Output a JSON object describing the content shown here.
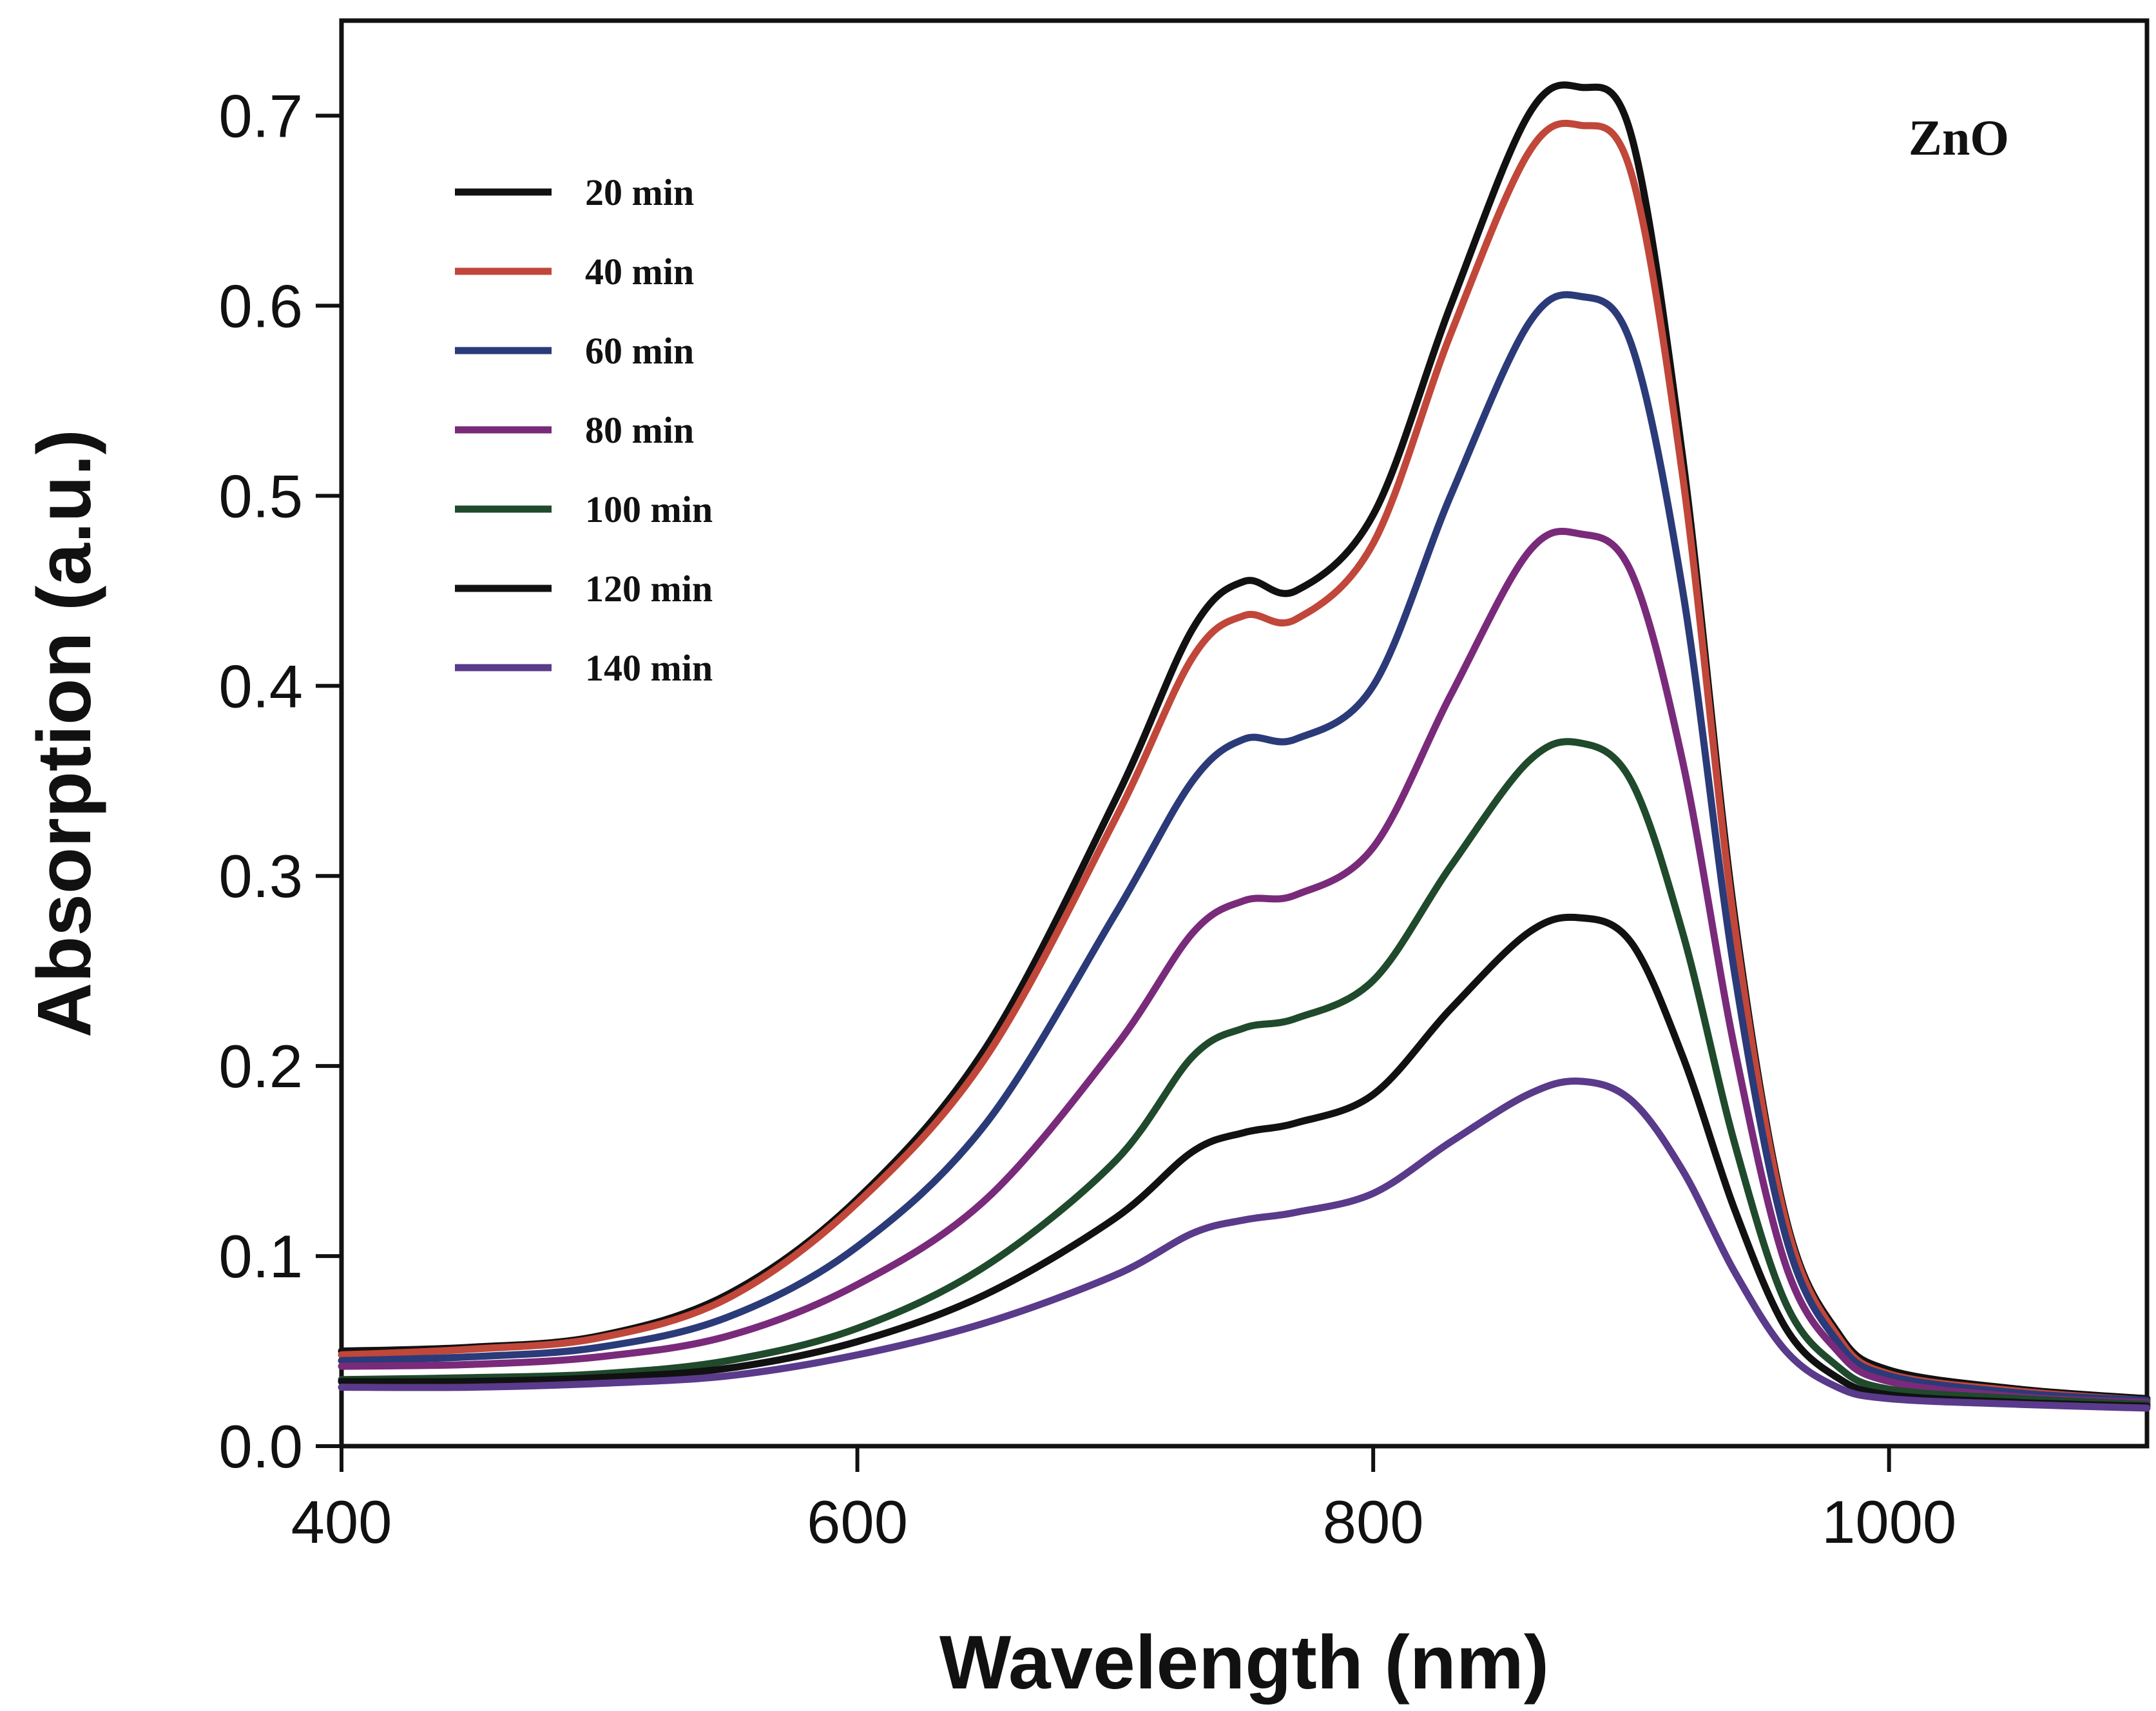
{
  "chart_data": {
    "type": "line",
    "title": "",
    "annotation": "ZnO",
    "xlabel": "Wavelength (nm)",
    "ylabel": "Absorption (a.u.)",
    "xlim": [
      400,
      1100
    ],
    "ylim": [
      0,
      0.75
    ],
    "x_ticks": [
      400,
      600,
      800,
      1000
    ],
    "x_tick_labels": [
      "400",
      "600",
      "800",
      "1000"
    ],
    "y_ticks": [
      0.0,
      0.1,
      0.2,
      0.3,
      0.4,
      0.5,
      0.6,
      0.7
    ],
    "y_tick_labels": [
      "0.0",
      "0.1",
      "0.2",
      "0.3",
      "0.4",
      "0.5",
      "0.6",
      "0.7"
    ],
    "grid": false,
    "legend_position": "top-left",
    "x": [
      400,
      450,
      500,
      550,
      600,
      650,
      700,
      730,
      750,
      770,
      800,
      830,
      860,
      880,
      900,
      920,
      940,
      960,
      980,
      1000,
      1050,
      1100
    ],
    "series": [
      {
        "name": "20 min",
        "color": "#111111",
        "values": [
          0.05,
          0.052,
          0.058,
          0.08,
          0.13,
          0.21,
          0.34,
          0.43,
          0.455,
          0.45,
          0.49,
          0.6,
          0.7,
          0.715,
          0.69,
          0.52,
          0.28,
          0.12,
          0.06,
          0.04,
          0.03,
          0.025
        ]
      },
      {
        "name": "40 min",
        "color": "#c0473a",
        "values": [
          0.048,
          0.051,
          0.057,
          0.078,
          0.128,
          0.205,
          0.33,
          0.415,
          0.437,
          0.435,
          0.475,
          0.585,
          0.68,
          0.695,
          0.67,
          0.51,
          0.275,
          0.118,
          0.058,
          0.038,
          0.029,
          0.024
        ]
      },
      {
        "name": "60 min",
        "color": "#2b3a78",
        "values": [
          0.045,
          0.047,
          0.052,
          0.068,
          0.105,
          0.17,
          0.28,
          0.35,
          0.372,
          0.372,
          0.4,
          0.5,
          0.59,
          0.605,
          0.58,
          0.45,
          0.25,
          0.11,
          0.055,
          0.037,
          0.028,
          0.024
        ]
      },
      {
        "name": "80 min",
        "color": "#7a2a7a",
        "values": [
          0.042,
          0.043,
          0.047,
          0.058,
          0.085,
          0.13,
          0.21,
          0.27,
          0.287,
          0.29,
          0.315,
          0.395,
          0.47,
          0.48,
          0.46,
          0.36,
          0.21,
          0.095,
          0.05,
          0.034,
          0.026,
          0.023
        ]
      },
      {
        "name": "100 min",
        "color": "#1f4a2c",
        "values": [
          0.035,
          0.036,
          0.038,
          0.045,
          0.062,
          0.095,
          0.15,
          0.205,
          0.22,
          0.225,
          0.245,
          0.305,
          0.36,
          0.37,
          0.35,
          0.27,
          0.16,
          0.075,
          0.042,
          0.03,
          0.025,
          0.022
        ]
      },
      {
        "name": "120 min",
        "color": "#111111",
        "values": [
          0.034,
          0.034,
          0.036,
          0.041,
          0.055,
          0.08,
          0.12,
          0.155,
          0.165,
          0.17,
          0.185,
          0.23,
          0.27,
          0.278,
          0.265,
          0.205,
          0.125,
          0.062,
          0.036,
          0.027,
          0.023,
          0.021
        ]
      },
      {
        "name": "140 min",
        "color": "#5a3a8a",
        "values": [
          0.031,
          0.031,
          0.033,
          0.037,
          0.048,
          0.065,
          0.09,
          0.112,
          0.119,
          0.123,
          0.133,
          0.16,
          0.185,
          0.192,
          0.182,
          0.145,
          0.092,
          0.05,
          0.031,
          0.025,
          0.022,
          0.02
        ]
      }
    ]
  }
}
